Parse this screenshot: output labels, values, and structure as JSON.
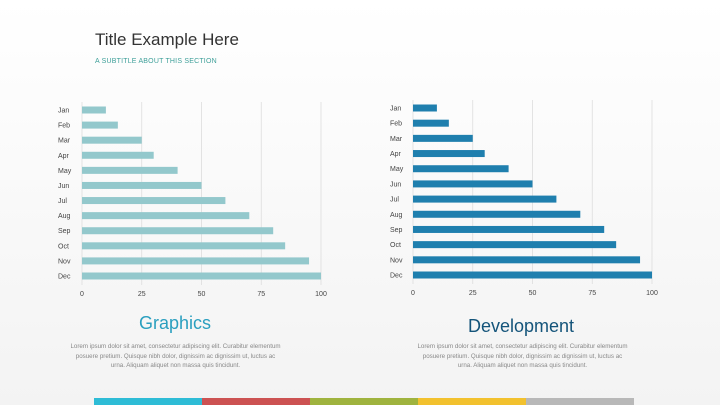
{
  "slide": {
    "title": "Title Example Here",
    "subtitle": "A SUBTITLE ABOUT THIS SECTION"
  },
  "chart_data": [
    {
      "type": "bar",
      "orientation": "horizontal",
      "categories": [
        "Jan",
        "Feb",
        "Mar",
        "Apr",
        "May",
        "Jun",
        "Jul",
        "Aug",
        "Sep",
        "Oct",
        "Nov",
        "Dec"
      ],
      "values": [
        10,
        15,
        25,
        30,
        40,
        50,
        60,
        70,
        80,
        85,
        95,
        100
      ],
      "xlim": [
        0,
        100
      ],
      "xticks": [
        0,
        25,
        50,
        75,
        100
      ],
      "grid": true,
      "bar_color": "#93c8cc"
    },
    {
      "type": "bar",
      "orientation": "horizontal",
      "categories": [
        "Jan",
        "Feb",
        "Mar",
        "Apr",
        "May",
        "Jun",
        "Jul",
        "Aug",
        "Sep",
        "Oct",
        "Nov",
        "Dec"
      ],
      "values": [
        10,
        15,
        25,
        30,
        40,
        50,
        60,
        70,
        80,
        85,
        95,
        100
      ],
      "xlim": [
        0,
        100
      ],
      "xticks": [
        0,
        25,
        50,
        75,
        100
      ],
      "grid": true,
      "bar_color": "#1f7fae"
    }
  ],
  "sections": {
    "left": {
      "heading": "Graphics",
      "body": "Lorem ipsum dolor sit amet, consectetur adipiscing elit. Curabitur elementum posuere pretium. Quisque nibh dolor, dignissim ac dignissim ut, luctus ac urna. Aliquam aliquet non massa quis tincidunt."
    },
    "right": {
      "heading": "Development",
      "body": "Lorem ipsum dolor sit amet, consectetur adipiscing elit. Curabitur elementum posuere pretium. Quisque nibh dolor, dignissim ac dignissim ut, luctus ac urna. Aliquam aliquet non massa quis tincidunt."
    }
  },
  "footer": {
    "colors": [
      "#2ebcd6",
      "#cc5252",
      "#9fb33e",
      "#f2c12e",
      "#b8b8b8"
    ]
  }
}
